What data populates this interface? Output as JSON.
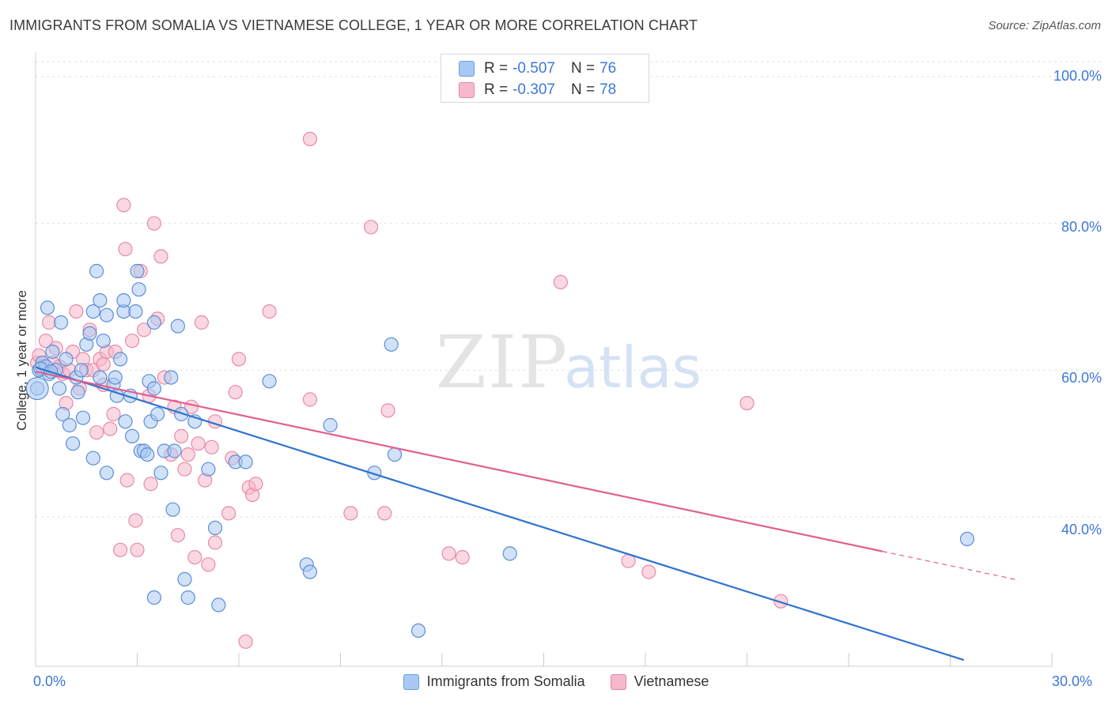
{
  "header": {
    "title": "IMMIGRANTS FROM SOMALIA VS VIETNAMESE COLLEGE, 1 YEAR OR MORE CORRELATION CHART",
    "source": "Source: ZipAtlas.com"
  },
  "watermark": {
    "part1": "ZIP",
    "part2": "atlas"
  },
  "stats": [
    {
      "r_label": "R =",
      "r_value": "-0.507",
      "n_label": "N =",
      "n_value": "76",
      "color": "#a9c8f3",
      "border": "#6a9fe0"
    },
    {
      "r_label": "R =",
      "r_value": "-0.307",
      "n_label": "N =",
      "n_value": "78",
      "color": "#f6b8cb",
      "border": "#ea85a4"
    }
  ],
  "legend": {
    "series1": "Immigrants from Somalia",
    "series2": "Vietnamese"
  },
  "axis_labels": {
    "y_title": "College, 1 year or more",
    "x_min": "0.0%",
    "x_max": "30.0%",
    "y_100": "100.0%",
    "y_80": "80.0%",
    "y_60": "60.0%",
    "y_40": "40.0%"
  },
  "chart_data": {
    "type": "scatter",
    "title": "IMMIGRANTS FROM SOMALIA VS VIETNAMESE COLLEGE, 1 YEAR OR MORE CORRELATION CHART",
    "xlabel": "",
    "ylabel": "College, 1 year or more",
    "xlim": [
      0,
      30
    ],
    "ylim": [
      20.5,
      102
    ],
    "y_ticks": [
      40,
      60,
      80,
      100
    ],
    "x_ticks": [
      0,
      3,
      6,
      9,
      12,
      15,
      18,
      21,
      24,
      27,
      30
    ],
    "legend_position": "bottom",
    "series": [
      {
        "name": "Immigrants from Somalia",
        "color": "#a9c8f3",
        "stroke": "#5b8fd6",
        "line_color": "#2f73d0",
        "r": -0.507,
        "n": 76,
        "trend": {
          "x0": 0,
          "y0": 60.4,
          "x1": 27.4,
          "y1": 20.5
        },
        "points": [
          [
            0.05,
            57.5
          ],
          [
            0.1,
            60.0
          ],
          [
            0.2,
            61.0
          ],
          [
            0.3,
            60.5
          ],
          [
            0.35,
            68.5
          ],
          [
            0.4,
            59.5
          ],
          [
            0.5,
            62.5
          ],
          [
            0.6,
            60.0
          ],
          [
            0.7,
            57.5
          ],
          [
            0.75,
            66.5
          ],
          [
            0.8,
            54.0
          ],
          [
            0.9,
            61.5
          ],
          [
            1.0,
            52.5
          ],
          [
            1.1,
            50.0
          ],
          [
            1.2,
            59.0
          ],
          [
            1.25,
            57.0
          ],
          [
            1.35,
            60.0
          ],
          [
            1.4,
            53.5
          ],
          [
            1.5,
            63.5
          ],
          [
            1.6,
            65.0
          ],
          [
            1.7,
            68.0
          ],
          [
            1.7,
            48.0
          ],
          [
            1.8,
            73.5
          ],
          [
            1.9,
            59.0
          ],
          [
            1.9,
            69.5
          ],
          [
            2.0,
            64.0
          ],
          [
            2.1,
            67.5
          ],
          [
            2.1,
            46.0
          ],
          [
            2.3,
            58.0
          ],
          [
            2.35,
            59.0
          ],
          [
            2.4,
            56.5
          ],
          [
            2.5,
            61.5
          ],
          [
            2.6,
            68.0
          ],
          [
            2.6,
            69.5
          ],
          [
            2.65,
            53.0
          ],
          [
            2.8,
            56.5
          ],
          [
            2.85,
            51.0
          ],
          [
            2.95,
            68.0
          ],
          [
            3.0,
            73.5
          ],
          [
            3.05,
            71.0
          ],
          [
            3.1,
            49.0
          ],
          [
            3.2,
            49.0
          ],
          [
            3.3,
            48.5
          ],
          [
            3.35,
            58.5
          ],
          [
            3.4,
            53.0
          ],
          [
            3.5,
            57.5
          ],
          [
            3.5,
            66.5
          ],
          [
            3.6,
            54.0
          ],
          [
            3.7,
            46.0
          ],
          [
            3.8,
            49.0
          ],
          [
            4.0,
            59.0
          ],
          [
            4.05,
            41.0
          ],
          [
            4.1,
            49.0
          ],
          [
            4.2,
            66.0
          ],
          [
            4.3,
            54.0
          ],
          [
            4.4,
            31.5
          ],
          [
            4.5,
            29.0
          ],
          [
            4.7,
            53.0
          ],
          [
            5.1,
            46.5
          ],
          [
            5.3,
            38.5
          ],
          [
            5.4,
            28.0
          ],
          [
            5.9,
            47.5
          ],
          [
            6.2,
            47.5
          ],
          [
            6.9,
            58.5
          ],
          [
            8.0,
            33.5
          ],
          [
            8.1,
            32.5
          ],
          [
            8.7,
            52.5
          ],
          [
            3.5,
            29.0
          ],
          [
            10.0,
            46.0
          ],
          [
            10.5,
            63.5
          ],
          [
            10.6,
            48.5
          ],
          [
            11.3,
            24.5
          ],
          [
            14.0,
            35.0
          ],
          [
            27.5,
            37.0
          ],
          [
            0.15,
            60.2
          ],
          [
            0.45,
            59.8
          ]
        ]
      },
      {
        "name": "Vietnamese",
        "color": "#f6b8cb",
        "stroke": "#e98aa7",
        "line_color": "#e06090",
        "r": -0.307,
        "n": 78,
        "trend": {
          "x0": 0,
          "y0": 59.8,
          "x1": 25.0,
          "y1": 35.3
        },
        "dash": {
          "x0": 25.0,
          "y0": 35.3,
          "x1": 29.0,
          "y1": 31.4
        },
        "points": [
          [
            0.05,
            61.0
          ],
          [
            0.1,
            62.0
          ],
          [
            0.2,
            60.5
          ],
          [
            0.3,
            64.0
          ],
          [
            0.4,
            66.5
          ],
          [
            0.5,
            61.0
          ],
          [
            0.6,
            63.0
          ],
          [
            0.7,
            60.5
          ],
          [
            0.8,
            59.5
          ],
          [
            0.9,
            55.5
          ],
          [
            1.0,
            60.0
          ],
          [
            1.1,
            62.5
          ],
          [
            1.2,
            68.0
          ],
          [
            1.3,
            57.5
          ],
          [
            1.4,
            61.5
          ],
          [
            1.5,
            60.0
          ],
          [
            1.6,
            65.5
          ],
          [
            1.7,
            60.0
          ],
          [
            1.8,
            51.5
          ],
          [
            1.9,
            61.5
          ],
          [
            2.0,
            58.0
          ],
          [
            2.1,
            62.5
          ],
          [
            2.2,
            52.0
          ],
          [
            2.3,
            54.0
          ],
          [
            2.35,
            62.5
          ],
          [
            2.5,
            35.5
          ],
          [
            2.6,
            82.5
          ],
          [
            2.65,
            76.5
          ],
          [
            2.7,
            45.0
          ],
          [
            2.85,
            64.0
          ],
          [
            2.95,
            39.5
          ],
          [
            3.0,
            35.5
          ],
          [
            3.1,
            73.5
          ],
          [
            3.2,
            65.5
          ],
          [
            3.35,
            56.5
          ],
          [
            3.4,
            44.5
          ],
          [
            3.5,
            80.0
          ],
          [
            3.6,
            67.0
          ],
          [
            3.7,
            75.5
          ],
          [
            3.8,
            59.0
          ],
          [
            4.0,
            48.5
          ],
          [
            4.1,
            55.0
          ],
          [
            4.2,
            37.5
          ],
          [
            4.3,
            51.0
          ],
          [
            4.4,
            46.5
          ],
          [
            4.5,
            48.5
          ],
          [
            4.6,
            55.0
          ],
          [
            4.7,
            34.5
          ],
          [
            4.8,
            50.0
          ],
          [
            5.0,
            45.0
          ],
          [
            5.1,
            33.5
          ],
          [
            5.2,
            49.5
          ],
          [
            5.3,
            53.0
          ],
          [
            5.3,
            36.5
          ],
          [
            5.7,
            40.5
          ],
          [
            5.8,
            48.0
          ],
          [
            5.9,
            57.0
          ],
          [
            6.0,
            61.5
          ],
          [
            6.2,
            23.0
          ],
          [
            6.3,
            44.0
          ],
          [
            6.4,
            43.0
          ],
          [
            6.5,
            44.5
          ],
          [
            6.9,
            68.0
          ],
          [
            8.1,
            91.5
          ],
          [
            8.1,
            56.0
          ],
          [
            9.3,
            40.5
          ],
          [
            9.9,
            79.5
          ],
          [
            10.3,
            40.5
          ],
          [
            10.4,
            54.5
          ],
          [
            12.2,
            35.0
          ],
          [
            12.6,
            34.5
          ],
          [
            15.5,
            72.0
          ],
          [
            17.5,
            34.0
          ],
          [
            18.1,
            32.5
          ],
          [
            21.0,
            55.5
          ],
          [
            22.0,
            28.5
          ],
          [
            4.9,
            66.5
          ],
          [
            2.0,
            60.8
          ]
        ]
      }
    ]
  }
}
